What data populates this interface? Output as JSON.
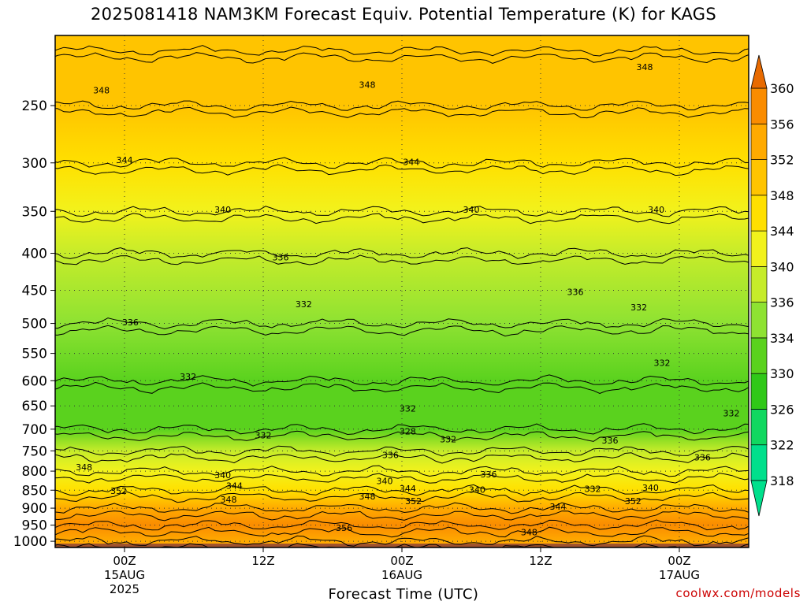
{
  "chart_data": {
    "type": "heatmap",
    "title": "2025081418 NAM3KM Forecast Equiv. Potential Temperature (K) for KAGS",
    "xlabel": "Forecast Time (UTC)",
    "ylabel": "",
    "y_scale": "log-pressure",
    "y_ticks": [
      1000,
      950,
      900,
      850,
      800,
      750,
      700,
      650,
      600,
      550,
      500,
      450,
      400,
      350,
      300,
      250
    ],
    "x_ticks": [
      {
        "hour": 0,
        "line1": "00Z",
        "line2": "15AUG",
        "line3": "2025"
      },
      {
        "hour": 12,
        "line1": "12Z",
        "line2": "",
        "line3": ""
      },
      {
        "hour": 24,
        "line1": "00Z",
        "line2": "16AUG",
        "line3": ""
      },
      {
        "hour": 36,
        "line1": "12Z",
        "line2": "",
        "line3": ""
      },
      {
        "hour": 48,
        "line1": "00Z",
        "line2": "17AUG",
        "line3": ""
      }
    ],
    "xlim": [
      -6,
      54
    ],
    "ylim": [
      1020,
      200
    ],
    "colorbar": {
      "levels": [
        318,
        322,
        326,
        330,
        334,
        336,
        340,
        344,
        348,
        352,
        356,
        360
      ],
      "colors": [
        "#00e08c",
        "#10d860",
        "#30c818",
        "#5ad21e",
        "#8ee232",
        "#c6ec2a",
        "#f2f21c",
        "#ffe000",
        "#ffc400",
        "#ffaa00",
        "#fa8c00",
        "#ff8a00"
      ]
    },
    "contour_profile": [
      {
        "p": 1000,
        "theta_e": 352
      },
      {
        "p": 950,
        "theta_e": 356
      },
      {
        "p": 900,
        "theta_e": 352
      },
      {
        "p": 850,
        "theta_e": 344
      },
      {
        "p": 800,
        "theta_e": 340
      },
      {
        "p": 750,
        "theta_e": 336
      },
      {
        "p": 700,
        "theta_e": 330
      },
      {
        "p": 600,
        "theta_e": 332
      },
      {
        "p": 500,
        "theta_e": 334
      },
      {
        "p": 400,
        "theta_e": 338
      },
      {
        "p": 350,
        "theta_e": 340
      },
      {
        "p": 300,
        "theta_e": 344
      },
      {
        "p": 250,
        "theta_e": 348
      },
      {
        "p": 210,
        "theta_e": 350
      }
    ],
    "contour_labels": [
      {
        "text": "348",
        "hour": -2.0,
        "p": 238
      },
      {
        "text": "348",
        "hour": 21.0,
        "p": 234
      },
      {
        "text": "348",
        "hour": 45.0,
        "p": 221
      },
      {
        "text": "344",
        "hour": 0.0,
        "p": 297
      },
      {
        "text": "344",
        "hour": 24.8,
        "p": 299
      },
      {
        "text": "340",
        "hour": 8.5,
        "p": 348
      },
      {
        "text": "340",
        "hour": 30.0,
        "p": 348
      },
      {
        "text": "340",
        "hour": 46.0,
        "p": 348
      },
      {
        "text": "336",
        "hour": 13.5,
        "p": 405
      },
      {
        "text": "336",
        "hour": 39.0,
        "p": 452
      },
      {
        "text": "336",
        "hour": 0.5,
        "p": 498
      },
      {
        "text": "332",
        "hour": 15.5,
        "p": 470
      },
      {
        "text": "332",
        "hour": 44.5,
        "p": 475
      },
      {
        "text": "332",
        "hour": 5.5,
        "p": 592
      },
      {
        "text": "332",
        "hour": 46.5,
        "p": 567
      },
      {
        "text": "332",
        "hour": 24.5,
        "p": 655
      },
      {
        "text": "332",
        "hour": 52.5,
        "p": 665
      },
      {
        "text": "332",
        "hour": 12.0,
        "p": 714
      },
      {
        "text": "328",
        "hour": 24.5,
        "p": 705
      },
      {
        "text": "332",
        "hour": 28.0,
        "p": 723
      },
      {
        "text": "336",
        "hour": 42.0,
        "p": 725
      },
      {
        "text": "336",
        "hour": 23.0,
        "p": 760
      },
      {
        "text": "336",
        "hour": 50.0,
        "p": 766
      },
      {
        "text": "348",
        "hour": -3.5,
        "p": 790
      },
      {
        "text": "340",
        "hour": 8.5,
        "p": 810
      },
      {
        "text": "336",
        "hour": 31.5,
        "p": 808
      },
      {
        "text": "340",
        "hour": 22.5,
        "p": 825
      },
      {
        "text": "344",
        "hour": 9.5,
        "p": 838
      },
      {
        "text": "344",
        "hour": 24.5,
        "p": 845
      },
      {
        "text": "340",
        "hour": 30.5,
        "p": 848
      },
      {
        "text": "332",
        "hour": 40.5,
        "p": 846
      },
      {
        "text": "340",
        "hour": 45.5,
        "p": 843
      },
      {
        "text": "352",
        "hour": -0.5,
        "p": 852
      },
      {
        "text": "348",
        "hour": 21.0,
        "p": 867
      },
      {
        "text": "352",
        "hour": 25.0,
        "p": 880
      },
      {
        "text": "348",
        "hour": 9.0,
        "p": 875
      },
      {
        "text": "352",
        "hour": 44.0,
        "p": 880
      },
      {
        "text": "344",
        "hour": 37.5,
        "p": 895
      },
      {
        "text": "356",
        "hour": 19.0,
        "p": 958
      },
      {
        "text": "348",
        "hour": 35.0,
        "p": 971
      }
    ]
  },
  "ui": {
    "xlabel": "Forecast Time (UTC)",
    "credit": "coolwx.com/models",
    "ground_color": "#a0522d",
    "plot_bg": "#ffd42a"
  }
}
